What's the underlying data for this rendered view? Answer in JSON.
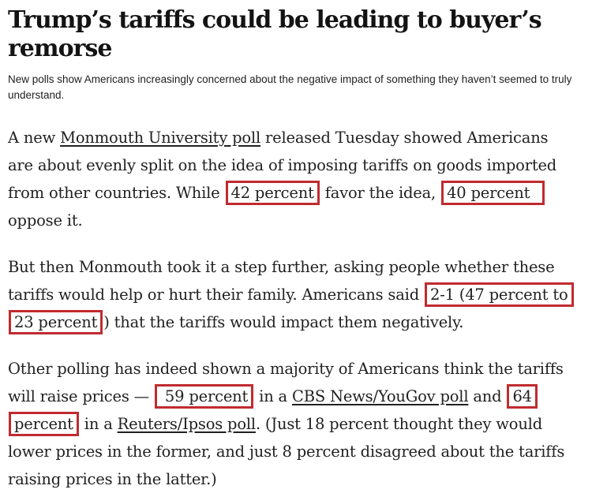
{
  "article": {
    "highlight_color": "#c02b30",
    "headline_segments": [
      {
        "t": "text",
        "v": "Trump’s tariffs could be leading to buyer’s"
      },
      {
        "t": "br"
      },
      {
        "t": "text",
        "v": "remorse"
      }
    ],
    "dek_segments": [
      {
        "t": "text",
        "v": "New polls show Americans increasingly concerned about the negative impact of something they haven’t seemed to truly"
      },
      {
        "t": "br"
      },
      {
        "t": "text",
        "v": "understand."
      }
    ],
    "paragraphs": [
      {
        "segments": [
          {
            "t": "text",
            "v": "A new "
          },
          {
            "t": "link",
            "v": "Monmouth University poll"
          },
          {
            "t": "text",
            "v": " released Tuesday showed Americans"
          },
          {
            "t": "br"
          },
          {
            "t": "text",
            "v": "are about evenly split on the idea of imposing tariffs on goods imported"
          },
          {
            "t": "br"
          },
          {
            "t": "text",
            "v": "from other countries. While "
          },
          {
            "t": "box",
            "v": "42 percent"
          },
          {
            "t": "text",
            "v": " favor the idea, "
          },
          {
            "t": "box",
            "v": "40 percent  "
          },
          {
            "t": "br"
          },
          {
            "t": "text",
            "v": "oppose it."
          }
        ]
      },
      {
        "segments": [
          {
            "t": "text",
            "v": "But then Monmouth took it a step further, asking people whether these"
          },
          {
            "t": "br"
          },
          {
            "t": "text",
            "v": "tariffs would help or hurt their family. Americans said "
          },
          {
            "t": "box",
            "v": "2-1 (47 percent to"
          },
          {
            "t": "br"
          },
          {
            "t": "box",
            "v": "23 percent"
          },
          {
            "t": "text",
            "v": ") that the tariffs would impact them negatively."
          }
        ]
      },
      {
        "segments": [
          {
            "t": "text",
            "v": "Other polling has indeed shown a majority of Americans think the tariffs"
          },
          {
            "t": "br"
          },
          {
            "t": "text",
            "v": "will raise prices — "
          },
          {
            "t": "box",
            "v": " 59 percent"
          },
          {
            "t": "text",
            "v": " in a "
          },
          {
            "t": "link",
            "v": "CBS News/YouGov poll"
          },
          {
            "t": "text",
            "v": " and "
          },
          {
            "t": "box",
            "v": "64"
          },
          {
            "t": "br"
          },
          {
            "t": "box",
            "v": "percent"
          },
          {
            "t": "text",
            "v": " in a "
          },
          {
            "t": "link",
            "v": "Reuters/Ipsos poll"
          },
          {
            "t": "text",
            "v": ". (Just 18 percent thought they would"
          },
          {
            "t": "br"
          },
          {
            "t": "text",
            "v": "lower prices in the former, and just 8 percent disagreed about the tariffs"
          },
          {
            "t": "br"
          },
          {
            "t": "text",
            "v": "raising prices in the latter.)"
          }
        ]
      }
    ]
  }
}
